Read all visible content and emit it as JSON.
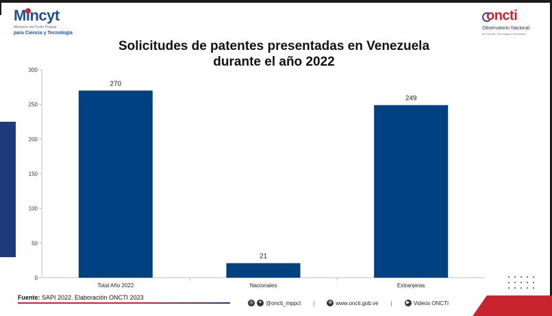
{
  "header": {
    "left_logo": {
      "name": "Mincyt",
      "line1": "Ministerio del Poder Popular",
      "line2": "para Ciencia y Tecnología"
    },
    "right_logo": {
      "name": "oncti",
      "line1": "Observatorio Nacional",
      "line2": "de Ciencia, Tecnología e Innovación"
    }
  },
  "title_line1": "Solicitudes de patentes presentadas en Venezuela",
  "title_line2": "durante el año 2022",
  "chart_data": {
    "type": "bar",
    "title": "Solicitudes de patentes presentadas en Venezuela durante el año 2022",
    "categories": [
      "Total Año 2022",
      "Nacionales",
      "Extranjeras"
    ],
    "values": [
      270,
      21,
      249
    ],
    "xlabel": "",
    "ylabel": "",
    "ylim": [
      0,
      300
    ],
    "yticks": [
      0,
      50,
      100,
      150,
      200,
      250,
      300
    ],
    "grid": false,
    "bar_color": "#004182"
  },
  "footer": {
    "source_label": "Fuente:",
    "source_text": " SAPI 2022. Elaboración ONCTI 2023",
    "social": "@oncti_mppct",
    "web": "www.oncti.gob.ve",
    "videos": "Videos ONCTI",
    "separator": "|"
  },
  "colors": {
    "accent_red": "#c8242f",
    "accent_blue": "#1f3a7a"
  }
}
